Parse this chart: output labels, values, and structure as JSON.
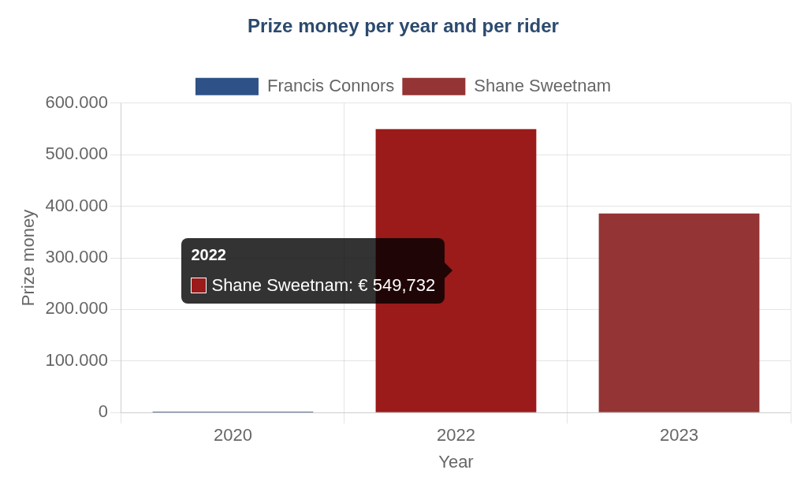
{
  "chart_data": {
    "type": "bar",
    "title": "Prize money per year and per rider",
    "xlabel": "Year",
    "ylabel": "Prize money",
    "categories": [
      "2020",
      "2022",
      "2023"
    ],
    "series": [
      {
        "name": "Francis Connors",
        "color": "#2e5287",
        "values": [
          2000,
          null,
          null
        ]
      },
      {
        "name": "Shane Sweetnam",
        "color": "#943434",
        "colors": [
          "#943434",
          "#9b1a1a",
          "#943434"
        ],
        "values": [
          null,
          549732,
          386000
        ]
      }
    ],
    "ylim": [
      0,
      600000
    ],
    "yticks": [
      {
        "value": 0,
        "label": "0"
      },
      {
        "value": 100000,
        "label": "100.000"
      },
      {
        "value": 200000,
        "label": "200.000"
      },
      {
        "value": 300000,
        "label": "300.000"
      },
      {
        "value": 400000,
        "label": "400.000"
      },
      {
        "value": 500000,
        "label": "500.000"
      },
      {
        "value": 600000,
        "label": "600.000"
      }
    ],
    "grid": true,
    "legend": "top",
    "annotations": [
      "2022",
      "Shane Sweetnam: € 549,732"
    ]
  }
}
